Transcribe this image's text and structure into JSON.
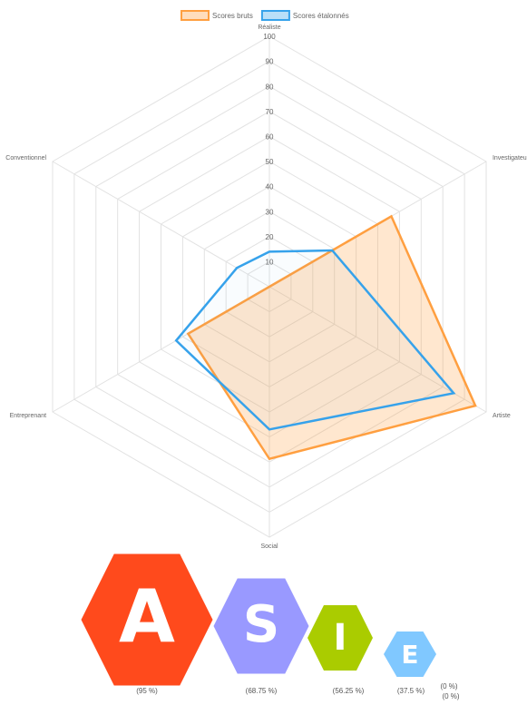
{
  "chart_data": {
    "type": "radar",
    "categories": [
      "Réaliste",
      "Investigateur",
      "Artiste",
      "Social",
      "Entreprenant",
      "Conventionnel"
    ],
    "series": [
      {
        "name": "Scores bruts",
        "color": "#ff9f40",
        "values": [
          0,
          56.25,
          95,
          68.75,
          37.5,
          0
        ]
      },
      {
        "name": "Scores étalonnés",
        "color": "#36a2eb",
        "values": [
          14,
          29,
          85,
          57,
          43,
          15
        ]
      }
    ],
    "rlim": [
      0,
      100
    ],
    "rticks": [
      10,
      20,
      30,
      40,
      50,
      60,
      70,
      80,
      90,
      100
    ],
    "grid": true,
    "legend": "top"
  },
  "badges": [
    {
      "letter": "A",
      "label": "(95 %)",
      "color": "#ff4a1c"
    },
    {
      "letter": "S",
      "label": "(68.75 %)",
      "color": "#9999ff"
    },
    {
      "letter": "I",
      "label": "(56.25 %)",
      "color": "#aacc00"
    },
    {
      "letter": "E",
      "label": "(37.5 %)",
      "color": "#80c8ff"
    },
    {
      "label": "(0 %)"
    },
    {
      "label": "(0 %)"
    }
  ]
}
